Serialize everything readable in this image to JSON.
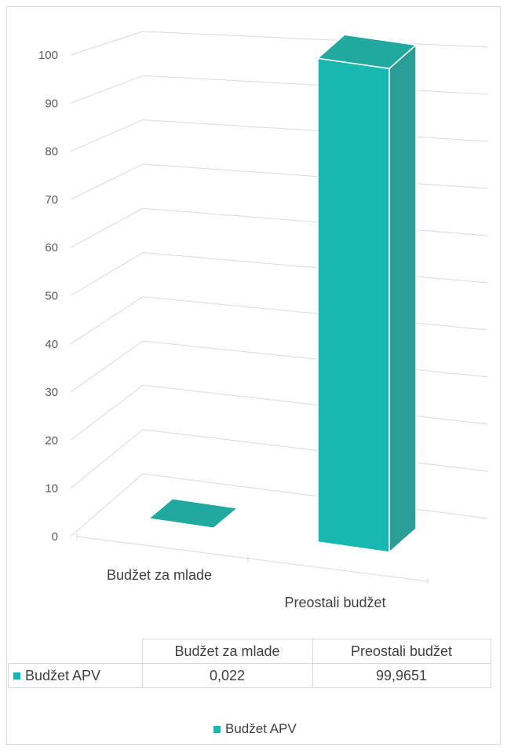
{
  "chart_data": {
    "type": "bar",
    "categories": [
      "Budžet za mlade",
      "Preostali budžet"
    ],
    "series": [
      {
        "name": "Budžet APV",
        "values": [
          0.022,
          99.9651
        ],
        "color": "#17b8b0"
      }
    ],
    "ylim": [
      0,
      100
    ],
    "yticks": [
      "0",
      "10",
      "20",
      "30",
      "40",
      "50",
      "60",
      "70",
      "80",
      "90",
      "100"
    ],
    "grid": true,
    "legend_position": "bottom",
    "data_table": {
      "headers": [
        "Budžet za mlade",
        "Preostali budžet"
      ],
      "rows": [
        {
          "label": "Budžet APV",
          "values": [
            "0,022",
            "99,9651"
          ]
        }
      ]
    }
  }
}
